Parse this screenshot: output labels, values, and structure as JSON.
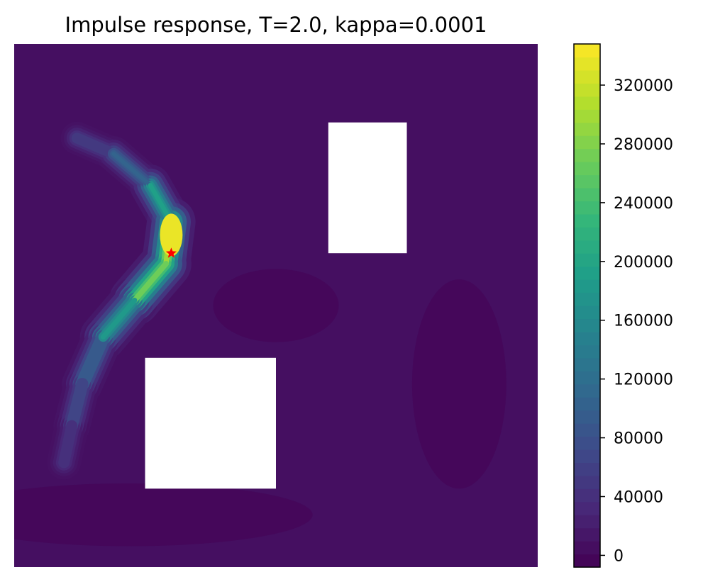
{
  "chart_data": {
    "type": "heatmap",
    "title": "Impulse response, T=2.0, kappa=0.0001",
    "xlabel": "",
    "ylabel": "",
    "axes_visible": false,
    "domain": {
      "x": [
        0,
        1
      ],
      "y": [
        0,
        1
      ]
    },
    "obstacles": [
      {
        "name": "upper-right-obstacle",
        "x": [
          0.6,
          0.75
        ],
        "y": [
          0.6,
          0.85
        ]
      },
      {
        "name": "lower-left-obstacle",
        "x": [
          0.25,
          0.5
        ],
        "y": [
          0.15,
          0.4
        ]
      }
    ],
    "source_marker": {
      "x": 0.3,
      "y": 0.6,
      "symbol": "star",
      "color": "#ff0000"
    },
    "colormap": "viridis",
    "colorbar": {
      "min": -8000,
      "max": 348000,
      "ticks": [
        0,
        40000,
        80000,
        120000,
        160000,
        200000,
        240000,
        280000,
        320000
      ],
      "levels": 40
    },
    "field_peak": 348000,
    "plume_path": [
      [
        0.12,
        0.82
      ],
      [
        0.19,
        0.79
      ],
      [
        0.26,
        0.73
      ],
      [
        0.3,
        0.66
      ],
      [
        0.29,
        0.58
      ],
      [
        0.23,
        0.51
      ],
      [
        0.17,
        0.44
      ],
      [
        0.13,
        0.35
      ],
      [
        0.11,
        0.27
      ],
      [
        0.095,
        0.2
      ]
    ],
    "plume_values": [
      70000,
      110000,
      200000,
      310000,
      345000,
      280000,
      190000,
      130000,
      90000,
      55000
    ]
  }
}
